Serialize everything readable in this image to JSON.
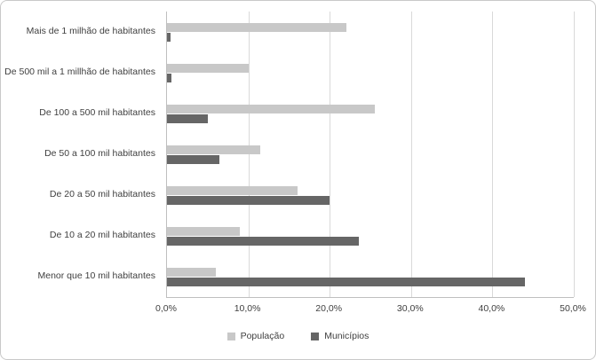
{
  "chart_data": {
    "type": "bar",
    "orientation": "horizontal",
    "title": "",
    "xlabel": "",
    "ylabel": "",
    "xlim": [
      0,
      50
    ],
    "grid": true,
    "legend_position": "bottom",
    "categories": [
      "Mais de 1 milhão de habitantes",
      "De 500 mil a 1 millhão de habitantes",
      "De 100 a 500 mil habitantes",
      "De 50 a 100 mil habitantes",
      "De 20 a 50 mil habitantes",
      "De 10 a 20 mil habitantes",
      "Menor que 10 mil habitantes"
    ],
    "series": [
      {
        "name": "População",
        "key": "populacao",
        "color": "#c8c8c8",
        "values": [
          22.0,
          10.0,
          25.5,
          11.5,
          16.0,
          9.0,
          6.0
        ]
      },
      {
        "name": "Municípios",
        "key": "municipios",
        "color": "#666666",
        "values": [
          0.4,
          0.6,
          5.0,
          6.4,
          20.0,
          23.6,
          44.0
        ]
      }
    ],
    "x_ticks": [
      "0,0%",
      "10,0%",
      "20,0%",
      "30,0%",
      "40,0%",
      "50,0%"
    ]
  }
}
